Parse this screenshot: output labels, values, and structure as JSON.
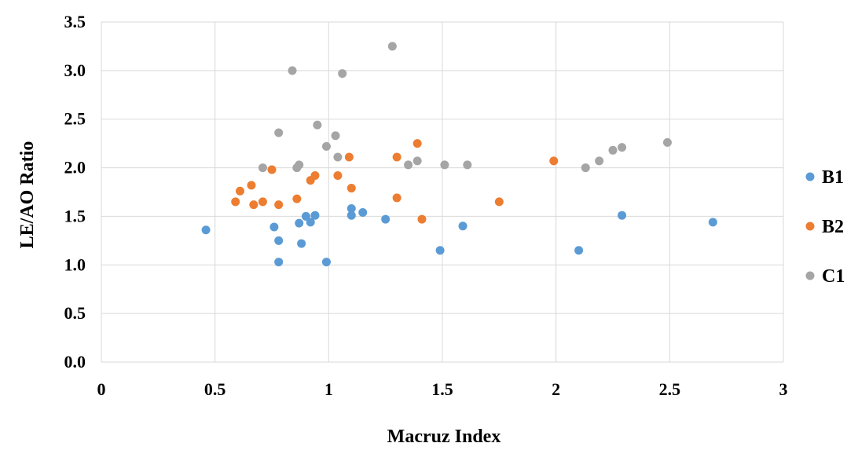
{
  "chart_data": {
    "type": "scatter",
    "title": "",
    "xlabel": "Macruz Index",
    "ylabel": "LE/AO Ratio",
    "xlim": [
      0,
      3
    ],
    "ylim": [
      0,
      3.5
    ],
    "x_ticks": [
      "0",
      "0.5",
      "1",
      "1.5",
      "2",
      "2.5",
      "3"
    ],
    "y_ticks": [
      "0.0",
      "0.5",
      "1.0",
      "1.5",
      "2.0",
      "2.5",
      "3.0",
      "3.5"
    ],
    "grid": true,
    "legend_position": "right",
    "series": [
      {
        "name": "B1",
        "color": "#5b9bd5",
        "points": [
          [
            0.46,
            1.36
          ],
          [
            0.76,
            1.39
          ],
          [
            0.78,
            1.25
          ],
          [
            0.78,
            1.03
          ],
          [
            0.87,
            1.43
          ],
          [
            0.88,
            1.22
          ],
          [
            0.9,
            1.5
          ],
          [
            0.92,
            1.44
          ],
          [
            0.94,
            1.51
          ],
          [
            0.99,
            1.03
          ],
          [
            1.1,
            1.51
          ],
          [
            1.1,
            1.58
          ],
          [
            1.15,
            1.54
          ],
          [
            1.25,
            1.47
          ],
          [
            1.49,
            1.15
          ],
          [
            1.59,
            1.4
          ],
          [
            2.1,
            1.15
          ],
          [
            2.29,
            1.51
          ],
          [
            2.69,
            1.44
          ]
        ]
      },
      {
        "name": "B2",
        "color": "#ed7d31",
        "points": [
          [
            0.59,
            1.65
          ],
          [
            0.61,
            1.76
          ],
          [
            0.66,
            1.82
          ],
          [
            0.67,
            1.62
          ],
          [
            0.71,
            1.65
          ],
          [
            0.75,
            1.98
          ],
          [
            0.78,
            1.62
          ],
          [
            0.86,
            1.68
          ],
          [
            0.92,
            1.87
          ],
          [
            0.94,
            1.92
          ],
          [
            1.04,
            1.92
          ],
          [
            1.09,
            2.11
          ],
          [
            1.1,
            1.79
          ],
          [
            1.3,
            2.11
          ],
          [
            1.3,
            1.69
          ],
          [
            1.39,
            2.25
          ],
          [
            1.41,
            1.47
          ],
          [
            1.75,
            1.65
          ],
          [
            1.99,
            2.07
          ]
        ]
      },
      {
        "name": "C1",
        "color": "#a5a5a5",
        "points": [
          [
            0.71,
            2.0
          ],
          [
            0.78,
            2.36
          ],
          [
            0.84,
            3.0
          ],
          [
            0.86,
            2.0
          ],
          [
            0.87,
            2.03
          ],
          [
            0.95,
            2.44
          ],
          [
            0.99,
            2.22
          ],
          [
            1.03,
            2.33
          ],
          [
            1.04,
            2.11
          ],
          [
            1.06,
            2.97
          ],
          [
            1.28,
            3.25
          ],
          [
            1.35,
            2.03
          ],
          [
            1.39,
            2.07
          ],
          [
            1.51,
            2.03
          ],
          [
            1.61,
            2.03
          ],
          [
            2.13,
            2.0
          ],
          [
            2.19,
            2.07
          ],
          [
            2.25,
            2.18
          ],
          [
            2.29,
            2.21
          ],
          [
            2.49,
            2.26
          ]
        ]
      }
    ]
  }
}
